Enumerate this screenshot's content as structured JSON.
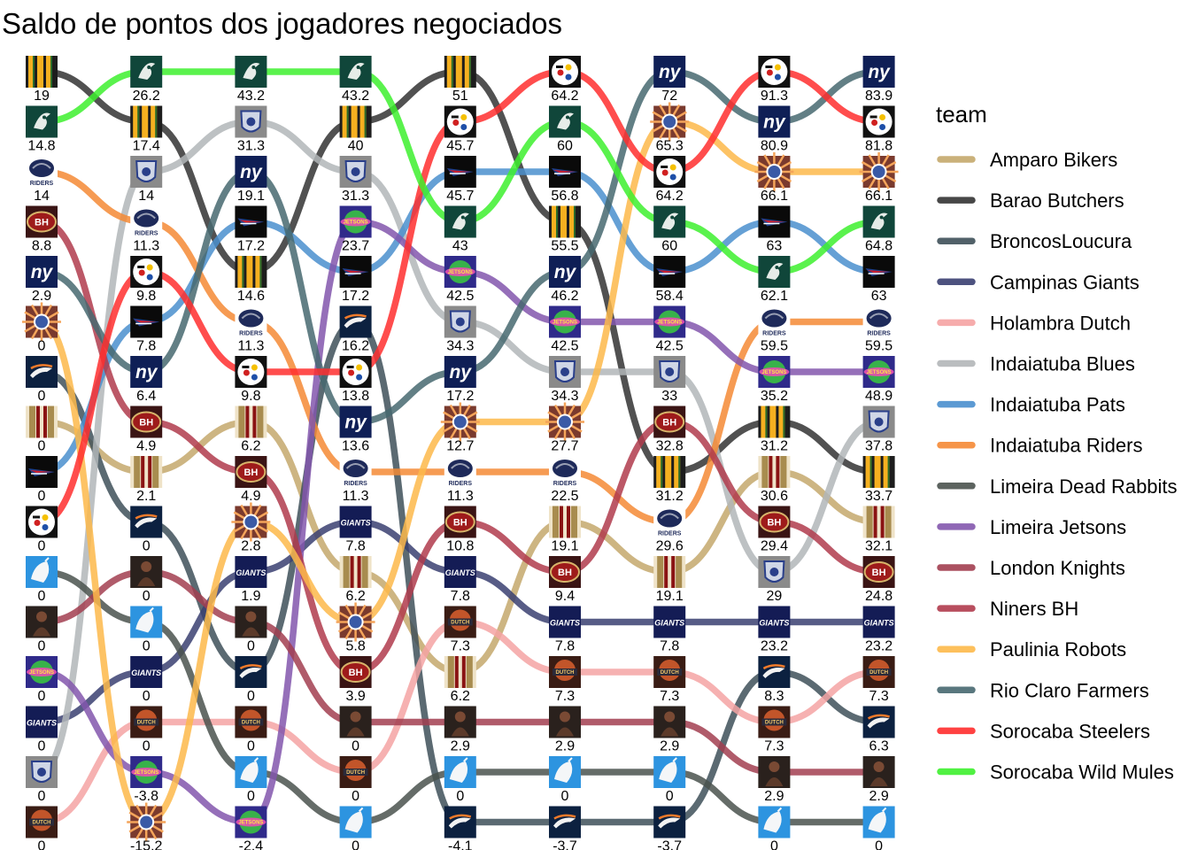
{
  "chart_data": {
    "type": "bump",
    "title": "Saldo de pontos dos jogadores negociados",
    "legend_title": "team",
    "teams": [
      {
        "name": "Amparo Bikers",
        "color": "#C4A86C",
        "icon": "amparo-bikers-stripes-icon"
      },
      {
        "name": "Barao Butchers",
        "color": "#333333",
        "icon": "barao-butchers-stripes-icon"
      },
      {
        "name": "BroncosLoucura",
        "color": "#3E5059",
        "icon": "broncos-horse-icon"
      },
      {
        "name": "Campinas Giants",
        "color": "#3A3F71",
        "icon": "giants-wordmark-icon"
      },
      {
        "name": "Holambra Dutch",
        "color": "#F5A3A3",
        "icon": "holambra-dutch-badge-icon"
      },
      {
        "name": "Indaiatuba Blues",
        "color": "#B2B6B8",
        "icon": "blues-shield-icon"
      },
      {
        "name": "Indaiatuba Pats",
        "color": "#4A8FCE",
        "icon": "pats-flying-elvis-icon"
      },
      {
        "name": "Indaiatuba Riders",
        "color": "#F58A35",
        "icon": "riders-badge-icon"
      },
      {
        "name": "Limeira Dead Rabbits",
        "color": "#4A524E",
        "icon": "dead-rabbits-figure-icon"
      },
      {
        "name": "Limeira Jetsons",
        "color": "#8356AD",
        "icon": "jetsons-globe-icon"
      },
      {
        "name": "London Knights",
        "color": "#A23E50",
        "icon": "knights-dark-figure-icon"
      },
      {
        "name": "Niners BH",
        "color": "#B03B4C",
        "icon": "niners-bh-oval-icon"
      },
      {
        "name": "Paulinia Robots",
        "color": "#FDB94A",
        "icon": "robots-burst-icon"
      },
      {
        "name": "Rio Claro Farmers",
        "color": "#476870",
        "icon": "farmers-ny-icon"
      },
      {
        "name": "Sorocaba Steelers",
        "color": "#FF2E2E",
        "icon": "steelers-logo-icon"
      },
      {
        "name": "Sorocaba Wild Mules",
        "color": "#3DF02E",
        "icon": "wild-mules-logo-icon"
      }
    ],
    "rounds": [
      {
        "order": [
          "Barao Butchers",
          "Sorocaba Wild Mules",
          "Indaiatuba Riders",
          "Niners BH",
          "Rio Claro Farmers",
          "Paulinia Robots",
          "BroncosLoucura",
          "Amparo Bikers",
          "Indaiatuba Pats",
          "Sorocaba Steelers",
          "Limeira Dead Rabbits",
          "London Knights",
          "Limeira Jetsons",
          "Campinas Giants",
          "Indaiatuba Blues",
          "Holambra Dutch"
        ],
        "values": [
          19,
          14.8,
          14,
          8.8,
          2.9,
          0,
          0,
          0,
          0,
          0,
          0,
          0,
          0,
          0,
          0,
          0
        ]
      },
      {
        "order": [
          "Sorocaba Wild Mules",
          "Barao Butchers",
          "Indaiatuba Blues",
          "Indaiatuba Riders",
          "Sorocaba Steelers",
          "Indaiatuba Pats",
          "Rio Claro Farmers",
          "Niners BH",
          "Amparo Bikers",
          "BroncosLoucura",
          "London Knights",
          "Limeira Dead Rabbits",
          "Campinas Giants",
          "Holambra Dutch",
          "Limeira Jetsons",
          "Paulinia Robots"
        ],
        "values": [
          26.2,
          17.4,
          14,
          11.3,
          9.8,
          7.8,
          6.4,
          4.9,
          2.1,
          0,
          0,
          0,
          0,
          0,
          -3.8,
          -15.2
        ]
      },
      {
        "order": [
          "Sorocaba Wild Mules",
          "Indaiatuba Blues",
          "Rio Claro Farmers",
          "Indaiatuba Pats",
          "Barao Butchers",
          "Indaiatuba Riders",
          "Sorocaba Steelers",
          "Amparo Bikers",
          "Niners BH",
          "Paulinia Robots",
          "Campinas Giants",
          "London Knights",
          "BroncosLoucura",
          "Holambra Dutch",
          "Limeira Dead Rabbits",
          "Limeira Jetsons"
        ],
        "values": [
          43.2,
          31.3,
          19.1,
          17.2,
          14.6,
          11.3,
          9.8,
          6.2,
          4.9,
          2.8,
          1.9,
          0,
          0,
          0,
          0,
          -2.4
        ]
      },
      {
        "order": [
          "Sorocaba Wild Mules",
          "Barao Butchers",
          "Indaiatuba Blues",
          "Limeira Jetsons",
          "Indaiatuba Pats",
          "BroncosLoucura",
          "Sorocaba Steelers",
          "Rio Claro Farmers",
          "Indaiatuba Riders",
          "Campinas Giants",
          "Amparo Bikers",
          "Paulinia Robots",
          "Niners BH",
          "London Knights",
          "Holambra Dutch",
          "Limeira Dead Rabbits"
        ],
        "values": [
          43.2,
          40,
          31.3,
          23.7,
          17.2,
          16.2,
          13.8,
          13.6,
          11.3,
          7.8,
          6.2,
          5.8,
          3.9,
          0,
          0,
          0
        ]
      },
      {
        "order": [
          "Barao Butchers",
          "Sorocaba Steelers",
          "Indaiatuba Pats",
          "Sorocaba Wild Mules",
          "Limeira Jetsons",
          "Indaiatuba Blues",
          "Rio Claro Farmers",
          "Paulinia Robots",
          "Indaiatuba Riders",
          "Niners BH",
          "Campinas Giants",
          "Holambra Dutch",
          "Amparo Bikers",
          "London Knights",
          "Limeira Dead Rabbits",
          "BroncosLoucura"
        ],
        "values": [
          51,
          45.7,
          45.7,
          43,
          42.5,
          34.3,
          17.2,
          12.7,
          11.3,
          10.8,
          7.8,
          7.3,
          6.2,
          2.9,
          0,
          -4.1
        ]
      },
      {
        "order": [
          "Sorocaba Steelers",
          "Sorocaba Wild Mules",
          "Indaiatuba Pats",
          "Barao Butchers",
          "Rio Claro Farmers",
          "Limeira Jetsons",
          "Indaiatuba Blues",
          "Paulinia Robots",
          "Indaiatuba Riders",
          "Amparo Bikers",
          "Niners BH",
          "Campinas Giants",
          "Holambra Dutch",
          "London Knights",
          "Limeira Dead Rabbits",
          "BroncosLoucura"
        ],
        "values": [
          64.2,
          60,
          56.8,
          55.5,
          46.2,
          42.5,
          34.3,
          27.7,
          22.5,
          19.1,
          9.4,
          7.8,
          7.3,
          2.9,
          0,
          -3.7
        ]
      },
      {
        "order": [
          "Rio Claro Farmers",
          "Paulinia Robots",
          "Sorocaba Steelers",
          "Sorocaba Wild Mules",
          "Indaiatuba Pats",
          "Limeira Jetsons",
          "Indaiatuba Blues",
          "Niners BH",
          "Barao Butchers",
          "Indaiatuba Riders",
          "Amparo Bikers",
          "Campinas Giants",
          "Holambra Dutch",
          "London Knights",
          "Limeira Dead Rabbits",
          "BroncosLoucura"
        ],
        "values": [
          72,
          65.3,
          64.2,
          60,
          58.4,
          42.5,
          33,
          32.8,
          31.2,
          29.6,
          19.1,
          7.8,
          7.3,
          2.9,
          0,
          -3.7
        ]
      },
      {
        "order": [
          "Sorocaba Steelers",
          "Rio Claro Farmers",
          "Paulinia Robots",
          "Indaiatuba Pats",
          "Sorocaba Wild Mules",
          "Indaiatuba Riders",
          "Limeira Jetsons",
          "Barao Butchers",
          "Amparo Bikers",
          "Niners BH",
          "Indaiatuba Blues",
          "Campinas Giants",
          "BroncosLoucura",
          "Holambra Dutch",
          "London Knights",
          "Limeira Dead Rabbits"
        ],
        "values": [
          91.3,
          80.9,
          66.1,
          63,
          62.1,
          59.5,
          35.2,
          31.2,
          30.6,
          29.4,
          29,
          23.2,
          8.3,
          7.3,
          2.9,
          0
        ]
      },
      {
        "order": [
          "Rio Claro Farmers",
          "Sorocaba Steelers",
          "Paulinia Robots",
          "Sorocaba Wild Mules",
          "Indaiatuba Pats",
          "Indaiatuba Riders",
          "Limeira Jetsons",
          "Indaiatuba Blues",
          "Barao Butchers",
          "Amparo Bikers",
          "Niners BH",
          "Campinas Giants",
          "Holambra Dutch",
          "BroncosLoucura",
          "London Knights",
          "Limeira Dead Rabbits"
        ],
        "values": [
          83.9,
          81.8,
          66.1,
          64.8,
          63,
          59.5,
          48.9,
          37.8,
          33.7,
          32.1,
          24.8,
          23.2,
          7.3,
          6.3,
          2.9,
          0
        ]
      }
    ]
  }
}
